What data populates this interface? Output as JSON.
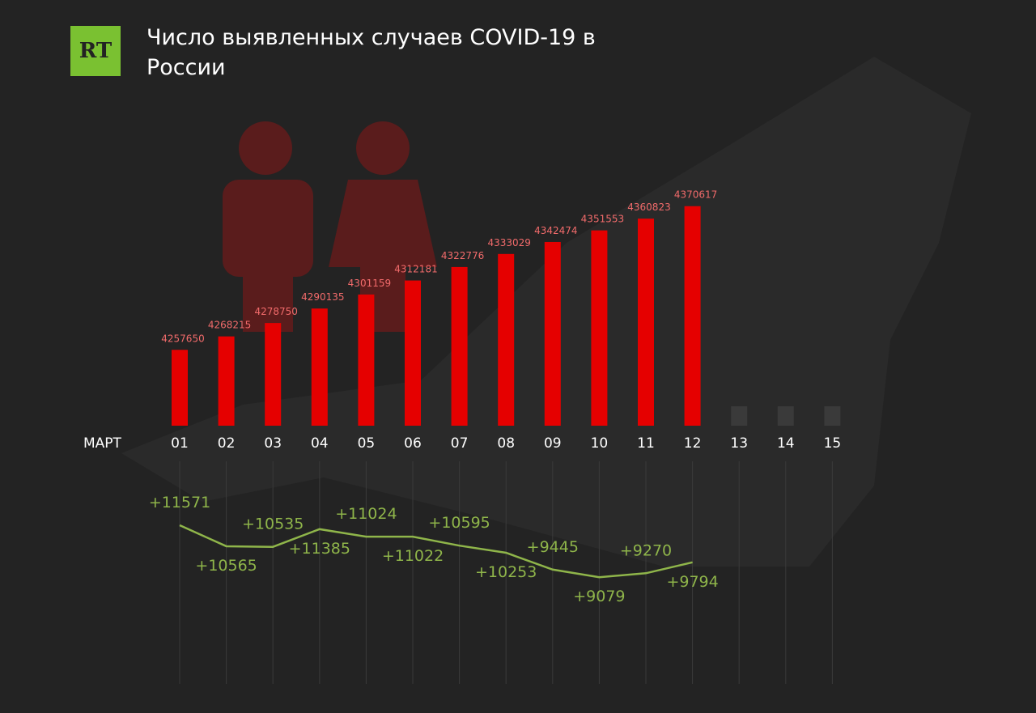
{
  "logo": "RT",
  "chart_data": [
    {
      "type": "bar",
      "title": "Число выявленных случаев COVID-19 в России",
      "x_label": "МАРТ",
      "categories": [
        "01",
        "02",
        "03",
        "04",
        "05",
        "06",
        "07",
        "08",
        "09",
        "10",
        "11",
        "12",
        "13",
        "14",
        "15"
      ],
      "values": [
        4257650,
        4268215,
        4278750,
        4290135,
        4301159,
        4312181,
        4322776,
        4333029,
        4342474,
        4351553,
        4360823,
        4370617,
        null,
        null,
        null
      ],
      "color": "#e50000",
      "label_color": "#f26b6b",
      "ylim": [
        4198000,
        4380000
      ]
    },
    {
      "type": "line",
      "values": [
        11571,
        10565,
        10535,
        11385,
        11024,
        11022,
        10595,
        10253,
        9445,
        9079,
        9270,
        9794
      ],
      "value_labels": [
        "+11571",
        "+10565",
        "+10535",
        "+11385",
        "+11024",
        "+11022",
        "+10595",
        "+10253",
        "+9445",
        "+9079",
        "+9270",
        "+9794"
      ],
      "color": "#8fb54a",
      "ylim": [
        8000,
        12000
      ]
    }
  ]
}
